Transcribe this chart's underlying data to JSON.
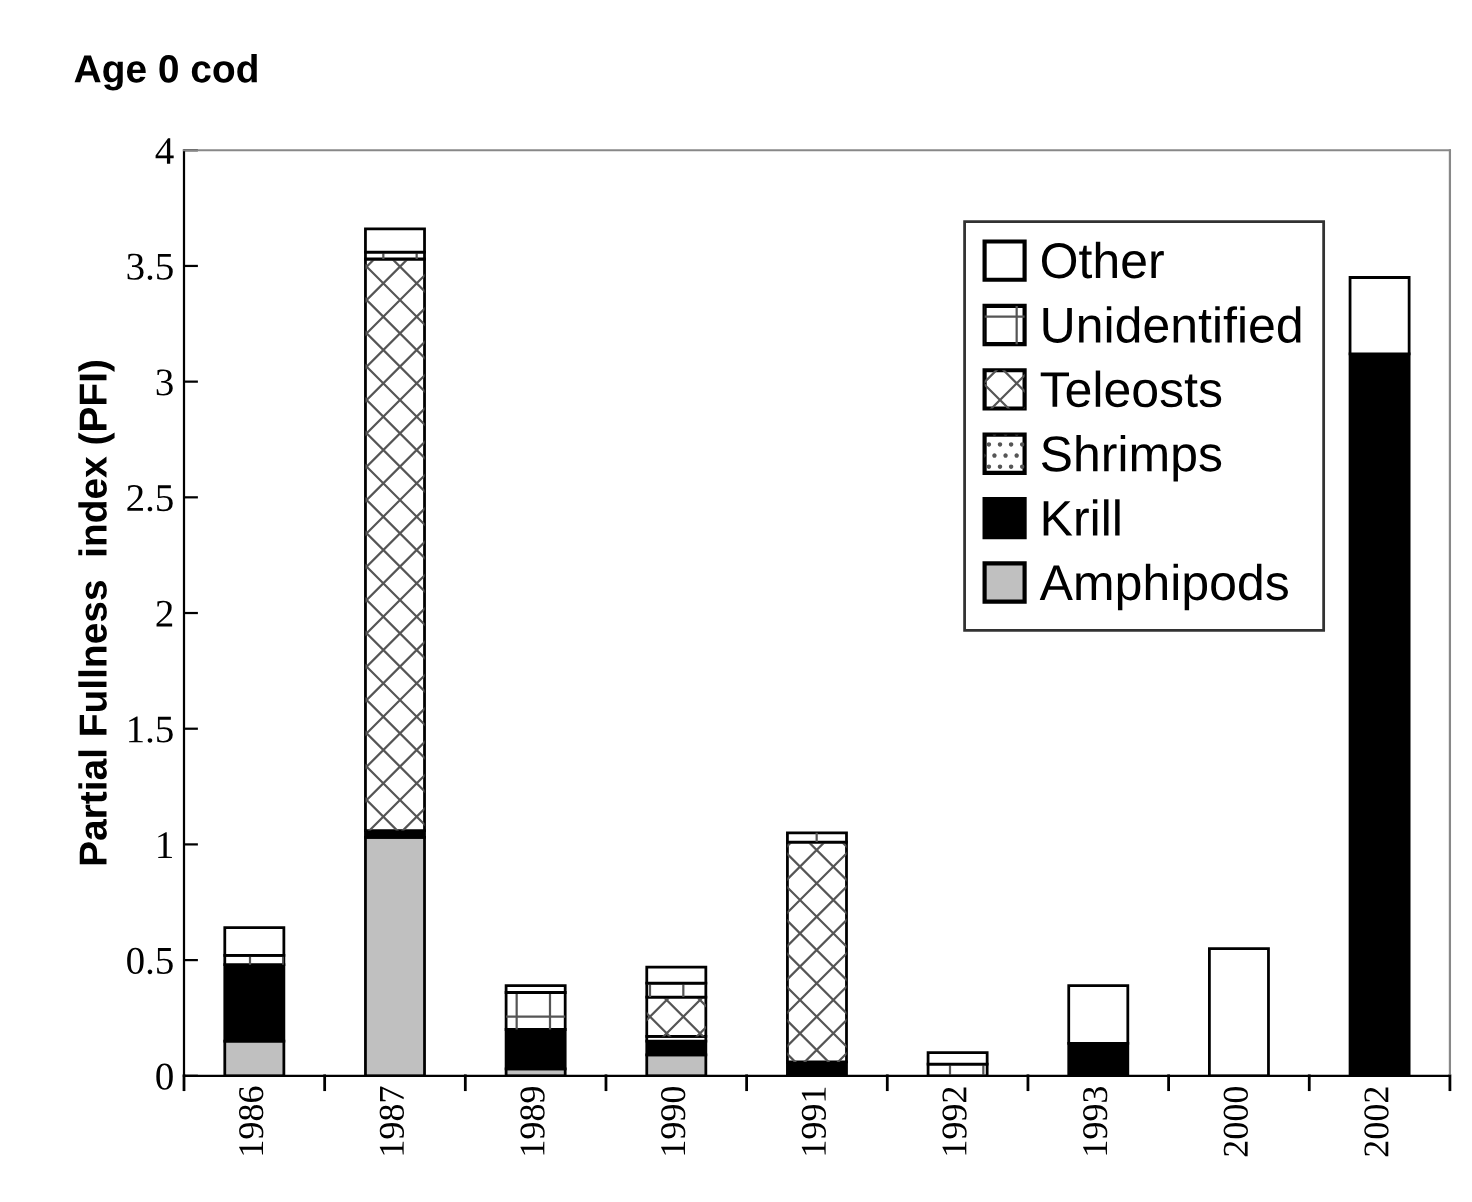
{
  "chart_data": {
    "type": "bar",
    "title": "Age 0 cod",
    "ylabel": "Partial Fullness  index (PFI)",
    "stacked": true,
    "categories": [
      "1986",
      "1987",
      "1989",
      "1990",
      "1991",
      "1992",
      "1993",
      "2000",
      "2002"
    ],
    "series": [
      {
        "name": "Amphipods",
        "color": "#c0c0c0",
        "values": [
          0.15,
          1.03,
          0.03,
          0.09,
          0,
          0,
          0,
          0,
          0
        ]
      },
      {
        "name": "Krill",
        "color": "#000000",
        "values": [
          0.33,
          0.03,
          0.17,
          0.06,
          0.06,
          null,
          0.14,
          0,
          3.12
        ]
      },
      {
        "name": "Shrimps",
        "color": "#ffffff",
        "values": [
          0,
          0,
          0,
          0.02,
          0,
          0,
          0,
          0,
          0
        ]
      },
      {
        "name": "Teleosts",
        "color": "#ffffff",
        "values": [
          0,
          2.47,
          0,
          0.17,
          0.95,
          0,
          0,
          0,
          0
        ]
      },
      {
        "name": "Unidentified",
        "color": "#ffffff",
        "values": [
          0.04,
          0.03,
          0.16,
          0.06,
          0.04,
          0.05,
          0,
          0,
          0
        ]
      },
      {
        "name": "Other",
        "color": "#ffffff",
        "values": [
          0.12,
          0.1,
          0.03,
          0.07,
          0,
          0.05,
          0.25,
          0.55,
          0.33
        ]
      }
    ],
    "ylim": [
      0,
      4
    ],
    "yticks": [
      0,
      0.5,
      1,
      1.5,
      2,
      2.5,
      3,
      3.5,
      4
    ],
    "grid": false,
    "legend": "top right"
  }
}
